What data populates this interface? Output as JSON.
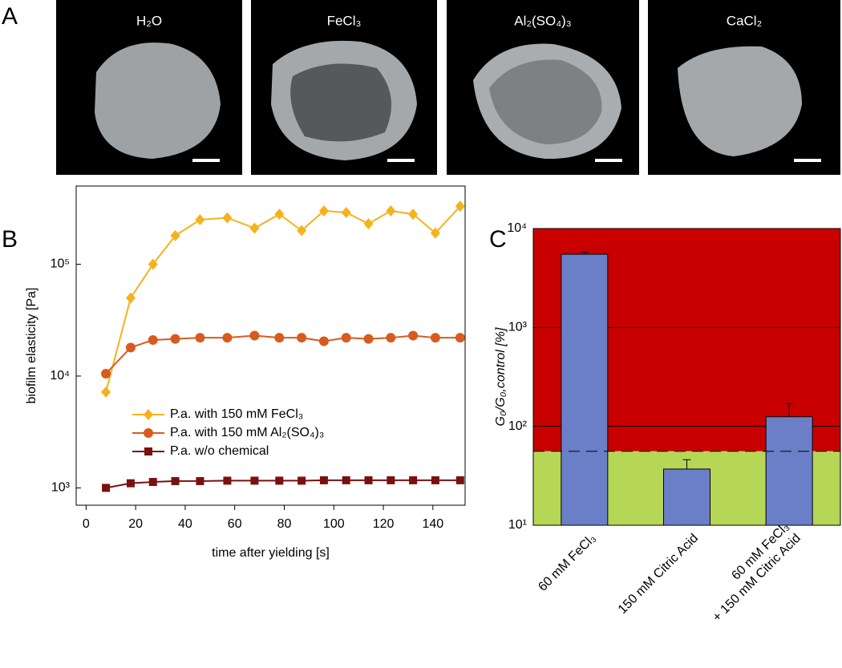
{
  "panels": {
    "A": {
      "letter": "A",
      "images": [
        "H₂O",
        "FeCl₃",
        "Al₂(SO₄)₃",
        "CaCl₂"
      ]
    },
    "B": {
      "letter": "B"
    },
    "C": {
      "letter": "C"
    }
  },
  "chart_data": [
    {
      "type": "line",
      "xlabel": "time after yielding [s]",
      "ylabel": "biofilm elasticity [Pa]",
      "x": [
        8,
        18,
        27,
        36,
        46,
        57,
        68,
        78,
        87,
        96,
        105,
        114,
        123,
        132,
        141,
        151
      ],
      "series": [
        {
          "name": "P.a. with 150 mM FeCl₃",
          "color": "#f5b21c",
          "marker": "diamond",
          "values": [
            7200,
            50000,
            100000,
            180000,
            250000,
            260000,
            210000,
            280000,
            200000,
            300000,
            290000,
            230000,
            300000,
            280000,
            190000,
            330000
          ]
        },
        {
          "name": "P.a. with 150 mM Al₂(SO₄)₃",
          "color": "#d95a1f",
          "marker": "circle",
          "values": [
            10500,
            18000,
            21000,
            21500,
            22000,
            22000,
            23000,
            22000,
            22000,
            20500,
            22000,
            21500,
            22000,
            23000,
            22000,
            22000
          ]
        },
        {
          "name": "P.a. w/o chemical",
          "color": "#7a1010",
          "marker": "square",
          "values": [
            1000,
            1100,
            1130,
            1150,
            1150,
            1160,
            1160,
            1160,
            1160,
            1170,
            1170,
            1170,
            1170,
            1170,
            1170,
            1170
          ]
        }
      ],
      "xlim": [
        -4,
        153
      ],
      "xticks": [
        0,
        20,
        40,
        60,
        80,
        100,
        120,
        140
      ],
      "ylim": [
        700,
        500000
      ],
      "ylog": true,
      "yticks": [
        {
          "value": 1000,
          "label": "10³"
        },
        {
          "value": 10000,
          "label": "10⁴"
        },
        {
          "value": 100000,
          "label": "10⁵"
        }
      ]
    },
    {
      "type": "bar",
      "ylabel": "G₀/G₀,control [%]",
      "categories": [
        [
          "60 mM FeCl₃"
        ],
        [
          "150 mM Citric Acid"
        ],
        [
          "60 mM FeCl₃",
          "+ 150 mM Citric Acid"
        ]
      ],
      "values": [
        5500,
        37,
        125
      ],
      "errors": [
        300,
        9,
        45
      ],
      "color": "#6b7fc8",
      "threshold": 56,
      "above_color": "#c90000",
      "below_color": "#b6d656",
      "ylim": [
        10,
        10000
      ],
      "ylog": true,
      "grid": true,
      "yticks": [
        {
          "value": 10,
          "label": "10¹"
        },
        {
          "value": 100,
          "label": "10²"
        },
        {
          "value": 1000,
          "label": "10³"
        },
        {
          "value": 10000,
          "label": "10⁴"
        }
      ]
    }
  ]
}
